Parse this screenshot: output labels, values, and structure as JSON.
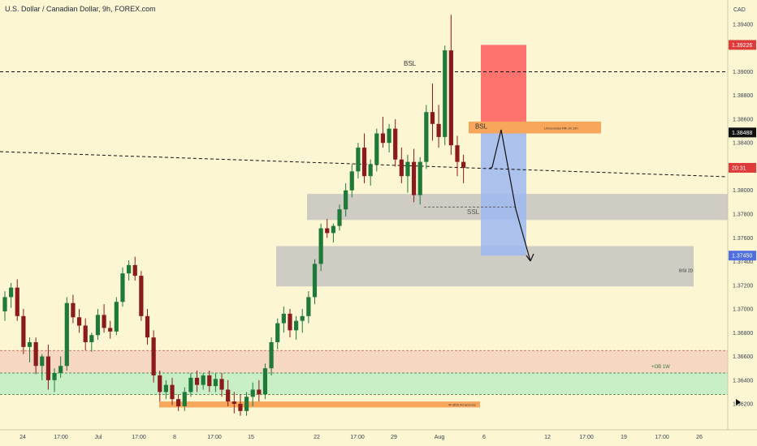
{
  "header": {
    "title": "U.S. Dollar / Canadian Dollar, 9h, FOREX.com"
  },
  "colors": {
    "background": "#fdf6d3",
    "bull": "#1f7a3a",
    "bear": "#8b1a1a",
    "sl_zone": "#ff5c5c",
    "tp_zone": "#9db7f0",
    "gray_zone": "#bdbdbd",
    "peach_zone": "#f5d7c2",
    "green_zone": "#c9efc7",
    "orange_bar": "#f7a65c",
    "line_dark": "#111111",
    "text_dark": "#1f2937"
  },
  "chart_data": {
    "type": "candlestick",
    "title": "U.S. Dollar / Canadian Dollar, 9h, FOREX.com",
    "currency": "CAD",
    "ylim": [
      1.3605,
      1.3955
    ],
    "y_ticks": [
      1.362,
      1.364,
      1.366,
      1.368,
      1.37,
      1.372,
      1.374,
      1.376,
      1.378,
      1.38,
      1.384,
      1.386,
      1.388,
      1.39,
      1.394
    ],
    "x_ticks": [
      "24",
      "17:00",
      "Jul",
      "17:00",
      "8",
      "17:00",
      "15",
      "22",
      "17:00",
      "29",
      "Aug",
      "6",
      "12",
      "17:00",
      "19",
      "17:00",
      "26"
    ],
    "price_tags": [
      {
        "label": "1.39226",
        "value": 1.39226,
        "color": "#e03b3b"
      },
      {
        "label": "1.38488",
        "value": 1.38488,
        "color": "#111111"
      },
      {
        "label": "20:31",
        "value": 1.3819,
        "color": "#e03b3b"
      },
      {
        "label": "1.37450",
        "value": 1.3745,
        "color": "#4f6fe0"
      }
    ],
    "candles": [
      [
        1.3698,
        1.3715,
        1.369,
        1.371
      ],
      [
        1.371,
        1.3722,
        1.3701,
        1.3718
      ],
      [
        1.3718,
        1.3725,
        1.369,
        1.3694
      ],
      [
        1.3694,
        1.37,
        1.3662,
        1.3668
      ],
      [
        1.3668,
        1.3676,
        1.3655,
        1.3672
      ],
      [
        1.3672,
        1.3676,
        1.3645,
        1.3652
      ],
      [
        1.3652,
        1.3662,
        1.364,
        1.366
      ],
      [
        1.366,
        1.367,
        1.3632,
        1.364
      ],
      [
        1.364,
        1.365,
        1.363,
        1.3646
      ],
      [
        1.3646,
        1.366,
        1.3642,
        1.3652
      ],
      [
        1.3652,
        1.371,
        1.3648,
        1.3705
      ],
      [
        1.3705,
        1.3712,
        1.3688,
        1.3693
      ],
      [
        1.3693,
        1.37,
        1.368,
        1.3686
      ],
      [
        1.3686,
        1.3692,
        1.3665,
        1.3672
      ],
      [
        1.3672,
        1.368,
        1.3664,
        1.3678
      ],
      [
        1.3678,
        1.37,
        1.3674,
        1.3695
      ],
      [
        1.3695,
        1.3704,
        1.368,
        1.3684
      ],
      [
        1.3684,
        1.369,
        1.3675,
        1.3681
      ],
      [
        1.3681,
        1.371,
        1.3678,
        1.3706
      ],
      [
        1.3706,
        1.3735,
        1.3702,
        1.373
      ],
      [
        1.373,
        1.3741,
        1.3724,
        1.3737
      ],
      [
        1.3737,
        1.3744,
        1.3724,
        1.3728
      ],
      [
        1.3728,
        1.3732,
        1.369,
        1.3694
      ],
      [
        1.3694,
        1.37,
        1.367,
        1.3676
      ],
      [
        1.3676,
        1.3682,
        1.3638,
        1.3644
      ],
      [
        1.3644,
        1.3648,
        1.3622,
        1.363
      ],
      [
        1.363,
        1.364,
        1.3624,
        1.3636
      ],
      [
        1.3636,
        1.3642,
        1.3619,
        1.3624
      ],
      [
        1.3624,
        1.3628,
        1.3614,
        1.3618
      ],
      [
        1.3618,
        1.3634,
        1.3614,
        1.363
      ],
      [
        1.363,
        1.3646,
        1.3626,
        1.3642
      ],
      [
        1.3642,
        1.3648,
        1.363,
        1.3636
      ],
      [
        1.3636,
        1.3646,
        1.3632,
        1.3644
      ],
      [
        1.3644,
        1.3648,
        1.363,
        1.3635
      ],
      [
        1.3635,
        1.3646,
        1.363,
        1.3641
      ],
      [
        1.3641,
        1.3646,
        1.3626,
        1.3632
      ],
      [
        1.3632,
        1.364,
        1.3618,
        1.3622
      ],
      [
        1.3622,
        1.363,
        1.3612,
        1.362
      ],
      [
        1.362,
        1.3628,
        1.361,
        1.3614
      ],
      [
        1.3614,
        1.363,
        1.361,
        1.3626
      ],
      [
        1.3626,
        1.3638,
        1.3618,
        1.3632
      ],
      [
        1.3632,
        1.364,
        1.3622,
        1.3628
      ],
      [
        1.3628,
        1.3654,
        1.3624,
        1.365
      ],
      [
        1.365,
        1.3676,
        1.3644,
        1.3672
      ],
      [
        1.3672,
        1.3692,
        1.3666,
        1.3688
      ],
      [
        1.3688,
        1.3702,
        1.368,
        1.3696
      ],
      [
        1.3696,
        1.37,
        1.3676,
        1.3682
      ],
      [
        1.3682,
        1.3694,
        1.3674,
        1.369
      ],
      [
        1.369,
        1.37,
        1.368,
        1.3694
      ],
      [
        1.3694,
        1.3715,
        1.3688,
        1.371
      ],
      [
        1.371,
        1.3742,
        1.3704,
        1.3738
      ],
      [
        1.3738,
        1.3772,
        1.3732,
        1.3768
      ],
      [
        1.3768,
        1.3776,
        1.376,
        1.3764
      ],
      [
        1.3764,
        1.3772,
        1.3756,
        1.377
      ],
      [
        1.377,
        1.3788,
        1.3766,
        1.3784
      ],
      [
        1.3784,
        1.3806,
        1.3778,
        1.38
      ],
      [
        1.38,
        1.3822,
        1.3794,
        1.3816
      ],
      [
        1.3816,
        1.384,
        1.381,
        1.3836
      ],
      [
        1.3836,
        1.3848,
        1.3806,
        1.3812
      ],
      [
        1.3812,
        1.3826,
        1.3804,
        1.3822
      ],
      [
        1.3822,
        1.3852,
        1.3816,
        1.3848
      ],
      [
        1.3848,
        1.3862,
        1.3836,
        1.384
      ],
      [
        1.384,
        1.3856,
        1.3832,
        1.3852
      ],
      [
        1.3852,
        1.386,
        1.382,
        1.3826
      ],
      [
        1.3826,
        1.3836,
        1.3806,
        1.3812
      ],
      [
        1.3812,
        1.383,
        1.3798,
        1.3824
      ],
      [
        1.3824,
        1.3835,
        1.379,
        1.3796
      ],
      [
        1.3796,
        1.3828,
        1.3788,
        1.3824
      ],
      [
        1.3824,
        1.3872,
        1.3818,
        1.3866
      ],
      [
        1.3866,
        1.389,
        1.3842,
        1.3856
      ],
      [
        1.3856,
        1.3872,
        1.3836,
        1.3845
      ],
      [
        1.3845,
        1.3922,
        1.3838,
        1.3918
      ],
      [
        1.3918,
        1.3948,
        1.383,
        1.3838
      ],
      [
        1.3838,
        1.3846,
        1.3812,
        1.3824
      ],
      [
        1.3824,
        1.383,
        1.3806,
        1.3819
      ]
    ]
  },
  "annotations": {
    "bsl_top": "BSL",
    "bsl_mid": "BSL",
    "ssl": "SSL",
    "ob_weekly": "+OB 1W",
    "bisi_2d": "BISI 2D",
    "orange_label_1": "Unrecorded Rth 9h 10h",
    "orange_label_2": "4h BISI 4d accross"
  }
}
